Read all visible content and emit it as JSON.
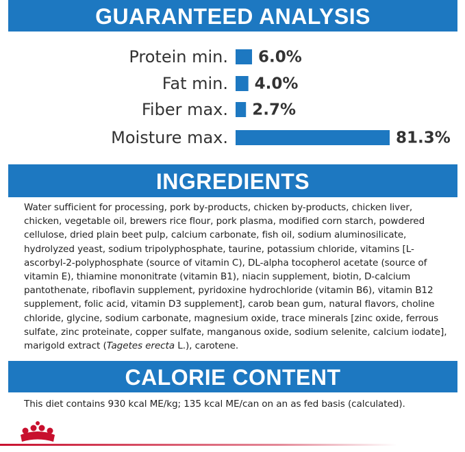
{
  "analysis": {
    "title": "GUARANTEED ANALYSIS"
  },
  "chart_data": {
    "type": "bar",
    "orientation": "horizontal",
    "color": "#1d78c1",
    "categories": [
      "Protein min.",
      "Fat min.",
      "Fiber max.",
      "Moisture max."
    ],
    "values": [
      6.0,
      4.0,
      2.7,
      81.3
    ],
    "value_labels": [
      "6.0%",
      "4.0%",
      "2.7%",
      "81.3%"
    ]
  },
  "ingredients": {
    "title": "INGREDIENTS",
    "text_before": "Water sufficient for processing, pork by-products, chicken by-products, chicken liver, chicken, vegetable oil, brewers rice flour, pork plasma, modified corn starch, powdered cellulose, dried plain beet pulp, calcium carbonate, fish oil, sodium aluminosilicate, hydrolyzed yeast, sodium tripolyphosphate, taurine, potassium chloride, vitamins [L-ascorbyl-2-polyphosphate (source of vitamin C), DL-alpha tocopherol acetate (source of vitamin E), thiamine mononitrate (vitamin B1), niacin supplement, biotin, D-calcium pantothenate, riboflavin supplement, pyridoxine hydrochloride (vitamin B6), vitamin B12 supplement, folic acid, vitamin D3 supplement], carob bean gum, natural flavors, choline chloride, glycine, sodium carbonate, magnesium oxide, trace minerals [zinc oxide, ferrous sulfate, zinc proteinate, copper sulfate, manganous oxide, sodium selenite, calcium iodate], marigold extract (",
    "italic": "Tagetes erecta",
    "text_after": " L.), carotene."
  },
  "calorie": {
    "title": "CALORIE CONTENT",
    "text": "This diet contains 930 kcal ME/kg; 135 kcal ME/can on an as fed basis (calculated)."
  }
}
